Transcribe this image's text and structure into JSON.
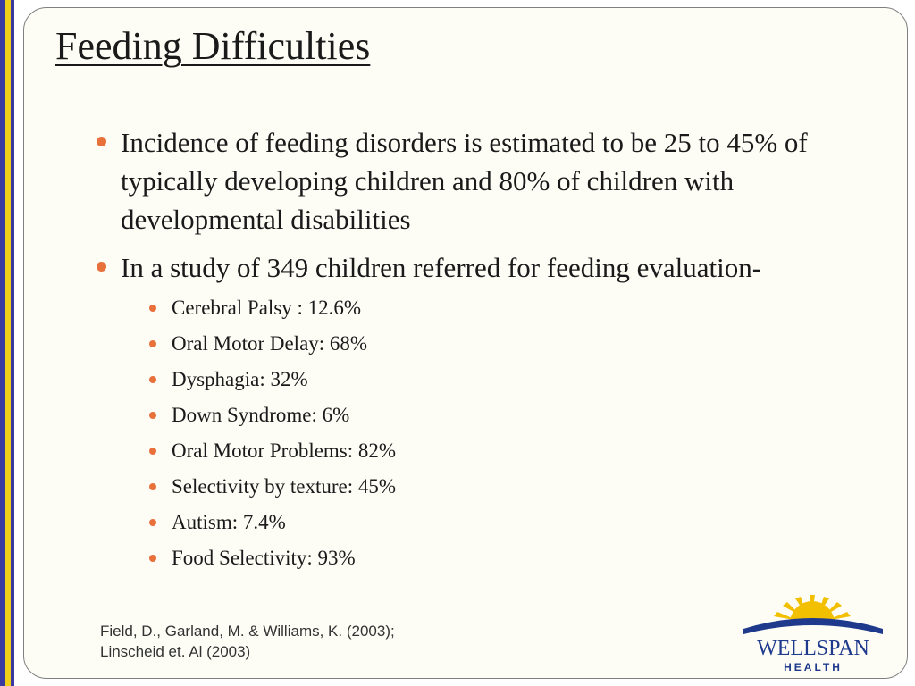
{
  "slide": {
    "title": "Feeding Difficulties",
    "bullets": [
      "Incidence of feeding disorders is estimated to be 25 to 45% of typically developing children and 80% of children with developmental disabilities",
      "In a study of 349 children referred for feeding evaluation-"
    ],
    "sub_bullets": [
      "Cerebral Palsy : 12.6%",
      "Oral Motor Delay: 68%",
      "Dysphagia: 32%",
      "Down Syndrome: 6%",
      "Oral Motor Problems: 82%",
      "Selectivity by texture: 45%",
      "Autism: 7.4%",
      "Food Selectivity: 93%"
    ],
    "citation": [
      "Field, D., Garland, M. & Williams, K. (2003);",
      "Linscheid et. Al (2003)"
    ]
  },
  "logo": {
    "name": "WELLSPAN",
    "tagline": "HEALTH",
    "icon": "sunrise-logo-icon"
  },
  "colors": {
    "accent_bullet": "#e8703a",
    "stripe_blue": "#3b3aa0",
    "stripe_yellow": "#f2cf17",
    "logo_navy": "#1f3a8c",
    "logo_sun": "#f2c000"
  }
}
